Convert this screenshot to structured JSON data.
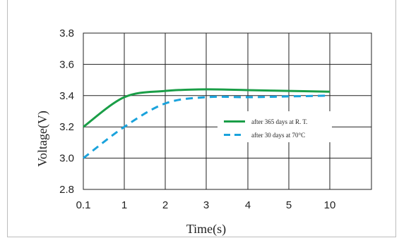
{
  "chart_data": {
    "type": "line",
    "xlabel": "Time(s)",
    "ylabel": "Voltage(V)",
    "x_ticks": [
      "0.1",
      "1",
      "2",
      "3",
      "4",
      "5",
      "10"
    ],
    "y_ticks": [
      "2.8",
      "3.0",
      "3.2",
      "3.4",
      "3.6",
      "3.8"
    ],
    "ylim": [
      2.8,
      3.8
    ],
    "grid": true,
    "legend_position": "center-right",
    "series": [
      {
        "name": "after 365 days at R. T.",
        "color": "#1a9e47",
        "style": "solid",
        "points": [
          {
            "x": "0.1",
            "y": 3.2
          },
          {
            "x": "1",
            "y": 3.39
          },
          {
            "x": "2",
            "y": 3.43
          },
          {
            "x": "3",
            "y": 3.44
          },
          {
            "x": "4",
            "y": 3.435
          },
          {
            "x": "5",
            "y": 3.43
          },
          {
            "x": "10",
            "y": 3.425
          }
        ]
      },
      {
        "name": "after 30 days at 70°C",
        "color": "#1aa3dc",
        "style": "dashed",
        "points": [
          {
            "x": "0.1",
            "y": 3.0
          },
          {
            "x": "1",
            "y": 3.2
          },
          {
            "x": "2",
            "y": 3.35
          },
          {
            "x": "3",
            "y": 3.39
          },
          {
            "x": "4",
            "y": 3.39
          },
          {
            "x": "5",
            "y": 3.395
          },
          {
            "x": "10",
            "y": 3.4
          }
        ]
      }
    ]
  }
}
